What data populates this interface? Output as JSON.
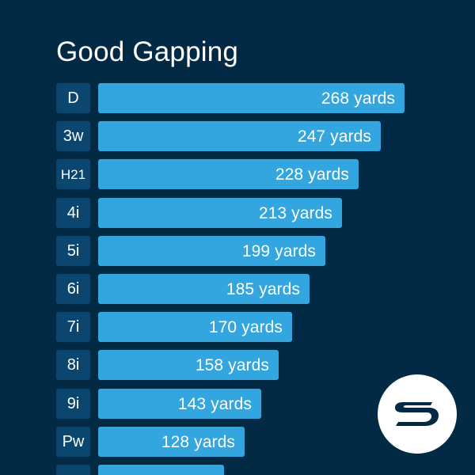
{
  "chart_data": {
    "type": "bar",
    "title": "Good Gapping",
    "categories": [
      "D",
      "3w",
      "H21",
      "4i",
      "5i",
      "6i",
      "7i",
      "8i",
      "9i",
      "Pw",
      ""
    ],
    "values": [
      268,
      247,
      228,
      213,
      199,
      185,
      170,
      158,
      143,
      128,
      110
    ],
    "value_labels": [
      "268 yards",
      "247 yards",
      "228 yards",
      "213 yards",
      "199 yards",
      "185 yards",
      "170 yards",
      "158 yards",
      "143 yards",
      "128 yards",
      ""
    ],
    "unit": "yards",
    "orientation": "horizontal",
    "sort": "descending",
    "xlim": [
      0,
      300
    ],
    "grid": false,
    "legend": "none"
  },
  "colors": {
    "background": "#032a44",
    "bar": "#34a6df",
    "category_label_background": "#0b466f",
    "text": "#ffffff",
    "logo_circle": "#ffffff",
    "logo_mark": "#032a44"
  },
  "brand": {
    "icon": "s-swoosh-logo-icon"
  }
}
